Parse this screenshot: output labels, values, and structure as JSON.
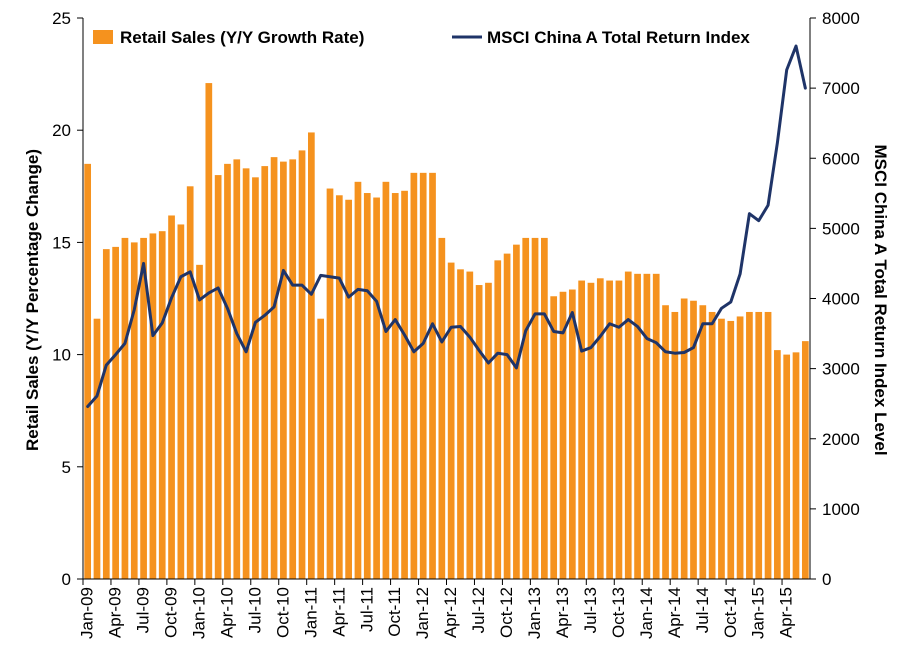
{
  "chart_data": {
    "type": "bar",
    "x_tick_labels": [
      "Jan-09",
      "Apr-09",
      "Jul-09",
      "Oct-09",
      "Jan-10",
      "Apr-10",
      "Jul-10",
      "Oct-10",
      "Jan-11",
      "Apr-11",
      "Jul-11",
      "Oct-11",
      "Jan-12",
      "Apr-12",
      "Jul-12",
      "Oct-12",
      "Jan-13",
      "Apr-13",
      "Jul-13",
      "Oct-13",
      "Jan-14",
      "Apr-14",
      "Jul-14",
      "Oct-14",
      "Jan-15",
      "Apr-15"
    ],
    "y_left": {
      "label": "Retail Sales (Y/Y Percentage Change)",
      "range": [
        0,
        25
      ],
      "ticks": [
        "0",
        "5",
        "10",
        "15",
        "20",
        "25"
      ]
    },
    "y_right": {
      "label": "MSCI China A Total Return Index Level",
      "range": [
        0,
        8000
      ],
      "ticks": [
        "0",
        "1000",
        "2000",
        "3000",
        "4000",
        "5000",
        "6000",
        "7000",
        "8000"
      ]
    },
    "legend_position": "top",
    "grid": false,
    "series": [
      {
        "name": "Retail Sales (Y/Y Growth Rate)",
        "kind": "bar",
        "axis": "left",
        "color": "#F5921E",
        "values": [
          18.5,
          11.6,
          14.7,
          14.8,
          15.2,
          15.0,
          15.2,
          15.4,
          15.5,
          16.2,
          15.8,
          17.5,
          14.0,
          22.1,
          18.0,
          18.5,
          18.7,
          18.3,
          17.9,
          18.4,
          18.8,
          18.6,
          18.7,
          19.1,
          19.9,
          11.6,
          17.4,
          17.1,
          16.9,
          17.7,
          17.2,
          17.0,
          17.7,
          17.2,
          17.3,
          18.1,
          18.1,
          18.1,
          15.2,
          14.1,
          13.8,
          13.7,
          13.1,
          13.2,
          14.2,
          14.5,
          14.9,
          15.2,
          15.2,
          15.2,
          12.6,
          12.8,
          12.9,
          13.3,
          13.2,
          13.4,
          13.3,
          13.3,
          13.7,
          13.6,
          13.6,
          13.6,
          12.2,
          11.9,
          12.5,
          12.4,
          12.2,
          11.9,
          11.6,
          11.5,
          11.7,
          11.9,
          11.9,
          11.9,
          10.2,
          10.0,
          10.1,
          10.6
        ]
      },
      {
        "name": "MSCI China A Total Return Index",
        "kind": "line",
        "axis": "right",
        "color": "#1F3468",
        "values": [
          2460,
          2610,
          3050,
          3200,
          3360,
          3840,
          4500,
          3470,
          3650,
          4010,
          4310,
          4380,
          3980,
          4080,
          4150,
          3860,
          3500,
          3240,
          3660,
          3760,
          3880,
          4400,
          4190,
          4190,
          4060,
          4330,
          4310,
          4290,
          4020,
          4130,
          4110,
          3960,
          3530,
          3700,
          3480,
          3240,
          3360,
          3640,
          3380,
          3590,
          3600,
          3450,
          3260,
          3080,
          3220,
          3200,
          3010,
          3540,
          3780,
          3780,
          3530,
          3510,
          3800,
          3250,
          3300,
          3460,
          3640,
          3590,
          3700,
          3600,
          3430,
          3370,
          3240,
          3220,
          3230,
          3300,
          3640,
          3640,
          3860,
          3950,
          4350,
          5210,
          5110,
          5330,
          6220,
          7260,
          7600,
          7000
        ]
      }
    ]
  }
}
